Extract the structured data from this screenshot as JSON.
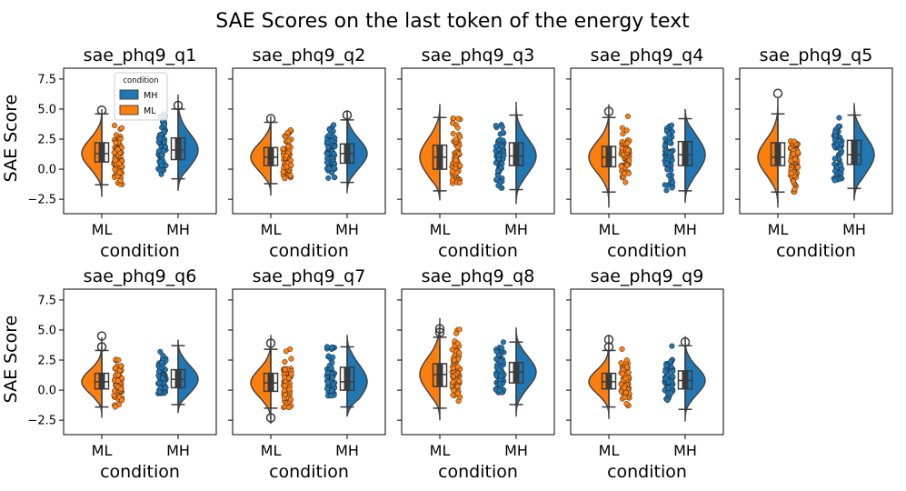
{
  "chart_data": {
    "type": "box-violin-strip",
    "suptitle": "SAE Scores on the last token of the energy text",
    "ylabel": "SAE Score",
    "xlabel": "condition",
    "categories": [
      "ML",
      "MH"
    ],
    "ylim": [
      -3.7,
      8.4
    ],
    "yticks": [
      -2.5,
      0.0,
      2.5,
      5.0,
      7.5
    ],
    "ytick_labels": [
      "−2.5",
      "0.0",
      "2.5",
      "5.0",
      "7.5"
    ],
    "legend": {
      "title": "condition",
      "position": "top-left of first panel",
      "entries": [
        {
          "label": "MH",
          "color": "#1f77b4"
        },
        {
          "label": "ML",
          "color": "#ff7f0e"
        }
      ]
    },
    "colors": {
      "ML": "#ff7f0e",
      "MH": "#1f77b4",
      "violin_edge": "#444444",
      "box_body": "#3a3a3a"
    },
    "panels": [
      {
        "title": "sae_phq9_q1",
        "ML": {
          "min": -1.3,
          "q1": 0.6,
          "median": 1.3,
          "q3": 2.2,
          "max": 4.6,
          "kde_min": -2.3,
          "kde_max": 5.0,
          "outliers": [
            4.9
          ],
          "points_min": -1.3,
          "points_max": 4.9
        },
        "MH": {
          "min": -0.8,
          "q1": 0.8,
          "median": 1.6,
          "q3": 2.6,
          "max": 5.0,
          "kde_min": -1.8,
          "kde_max": 6.2,
          "outliers": [
            5.3
          ],
          "points_min": -0.8,
          "points_max": 5.3
        }
      },
      {
        "title": "sae_phq9_q2",
        "ML": {
          "min": -1.2,
          "q1": 0.3,
          "median": 1.0,
          "q3": 1.8,
          "max": 3.9,
          "kde_min": -2.2,
          "kde_max": 4.4,
          "outliers": [
            4.2
          ],
          "points_min": -0.8,
          "points_max": 4.2
        },
        "MH": {
          "min": -1.1,
          "q1": 0.5,
          "median": 1.3,
          "q3": 2.1,
          "max": 4.1,
          "kde_min": -2.0,
          "kde_max": 4.9,
          "outliers": [
            4.5
          ],
          "points_min": -1.0,
          "points_max": 4.3
        }
      },
      {
        "title": "sae_phq9_q3",
        "ML": {
          "min": -1.8,
          "q1": 0.0,
          "median": 1.0,
          "q3": 2.0,
          "max": 4.3,
          "kde_min": -2.6,
          "kde_max": 5.4,
          "outliers": [],
          "points_min": -1.2,
          "points_max": 4.3
        },
        "MH": {
          "min": -1.7,
          "q1": 0.3,
          "median": 1.1,
          "q3": 2.2,
          "max": 4.5,
          "kde_min": -2.9,
          "kde_max": 5.6,
          "outliers": [],
          "points_min": -1.6,
          "points_max": 3.8
        }
      },
      {
        "title": "sae_phq9_q4",
        "ML": {
          "min": -1.9,
          "q1": 0.2,
          "median": 1.0,
          "q3": 1.9,
          "max": 4.3,
          "kde_min": -3.2,
          "kde_max": 5.4,
          "outliers": [
            4.8
          ],
          "points_min": -1.2,
          "points_max": 4.4
        },
        "MH": {
          "min": -1.8,
          "q1": 0.3,
          "median": 1.2,
          "q3": 2.3,
          "max": 4.2,
          "kde_min": -2.8,
          "kde_max": 5.0,
          "outliers": [],
          "points_min": -1.8,
          "points_max": 4.1
        }
      },
      {
        "title": "sae_phq9_q5",
        "ML": {
          "min": -1.9,
          "q1": 0.3,
          "median": 1.0,
          "q3": 2.2,
          "max": 4.6,
          "kde_min": -3.2,
          "kde_max": 5.9,
          "outliers": [
            6.3
          ],
          "points_min": -1.9,
          "points_max": 6.3
        },
        "MH": {
          "min": -1.6,
          "q1": 0.4,
          "median": 1.2,
          "q3": 2.4,
          "max": 4.5,
          "kde_min": -2.6,
          "kde_max": 5.5,
          "outliers": [],
          "points_min": -1.0,
          "points_max": 4.4
        }
      },
      {
        "title": "sae_phq9_q6",
        "ML": {
          "min": -1.4,
          "q1": 0.1,
          "median": 0.7,
          "q3": 1.4,
          "max": 3.3,
          "kde_min": -2.3,
          "kde_max": 4.4,
          "outliers": [
            3.6,
            4.5
          ],
          "points_min": -1.4,
          "points_max": 4.4
        },
        "MH": {
          "min": -1.2,
          "q1": 0.2,
          "median": 0.9,
          "q3": 1.7,
          "max": 3.7,
          "kde_min": -1.9,
          "kde_max": 4.2,
          "outliers": [],
          "points_min": -0.3,
          "points_max": 3.2
        }
      },
      {
        "title": "sae_phq9_q7",
        "ML": {
          "min": -1.5,
          "q1": -0.1,
          "median": 0.6,
          "q3": 1.4,
          "max": 3.4,
          "kde_min": -2.8,
          "kde_max": 4.6,
          "outliers": [
            -2.3,
            3.9
          ],
          "points_min": -1.5,
          "points_max": 4.0
        },
        "MH": {
          "min": -1.4,
          "q1": 0.0,
          "median": 0.7,
          "q3": 1.9,
          "max": 3.6,
          "kde_min": -2.2,
          "kde_max": 4.6,
          "outliers": [],
          "points_min": -0.5,
          "points_max": 3.8
        }
      },
      {
        "title": "sae_phq9_q8",
        "ML": {
          "min": -1.5,
          "q1": 0.3,
          "median": 1.3,
          "q3": 2.2,
          "max": 4.4,
          "kde_min": -2.5,
          "kde_max": 6.0,
          "outliers": [
            4.8,
            5.1
          ],
          "points_min": -1.4,
          "points_max": 5.1
        },
        "MH": {
          "min": -1.2,
          "q1": 0.6,
          "median": 1.5,
          "q3": 2.3,
          "max": 4.0,
          "kde_min": -2.2,
          "kde_max": 5.2,
          "outliers": [],
          "points_min": -0.2,
          "points_max": 4.2
        }
      },
      {
        "title": "sae_phq9_q9",
        "ML": {
          "min": -1.4,
          "q1": 0.1,
          "median": 0.7,
          "q3": 1.4,
          "max": 3.3,
          "kde_min": -2.4,
          "kde_max": 4.6,
          "outliers": [
            3.6,
            4.2
          ],
          "points_min": -1.4,
          "points_max": 3.6
        },
        "MH": {
          "min": -1.6,
          "q1": 0.1,
          "median": 0.8,
          "q3": 1.6,
          "max": 3.7,
          "kde_min": -2.6,
          "kde_max": 4.5,
          "outliers": [
            4.0
          ],
          "points_min": -1.0,
          "points_max": 3.8
        }
      }
    ]
  }
}
